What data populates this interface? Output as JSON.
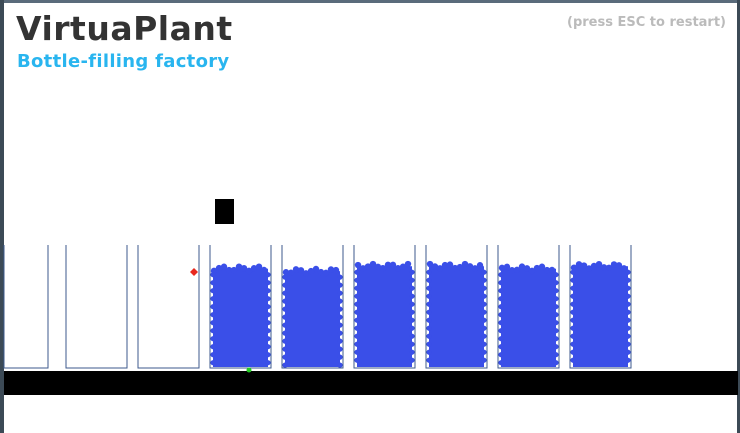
{
  "header": {
    "title": "VirtuaPlant",
    "subtitle": "Bottle-filling factory",
    "restart_hint": "(press ESC to restart)"
  },
  "colors": {
    "water": "#3a4fe8",
    "bottle_outline": "#3d5a8c",
    "conveyor": "#000000",
    "nozzle": "#000000",
    "level_sensor": "#e8281e",
    "limit_sensor": "#22cc22",
    "title": "#333333",
    "subtitle": "#29b5ef",
    "hint": "#bbbbbb"
  },
  "bottles": [
    {
      "state": "empty",
      "fill_fraction": 0.0
    },
    {
      "state": "empty",
      "fill_fraction": 0.0
    },
    {
      "state": "empty",
      "fill_fraction": 0.0
    },
    {
      "state": "full",
      "fill_fraction": 0.84
    },
    {
      "state": "full",
      "fill_fraction": 0.82
    },
    {
      "state": "full",
      "fill_fraction": 0.86
    },
    {
      "state": "full",
      "fill_fraction": 0.86
    },
    {
      "state": "full",
      "fill_fraction": 0.84
    },
    {
      "state": "full",
      "fill_fraction": 0.86
    }
  ]
}
